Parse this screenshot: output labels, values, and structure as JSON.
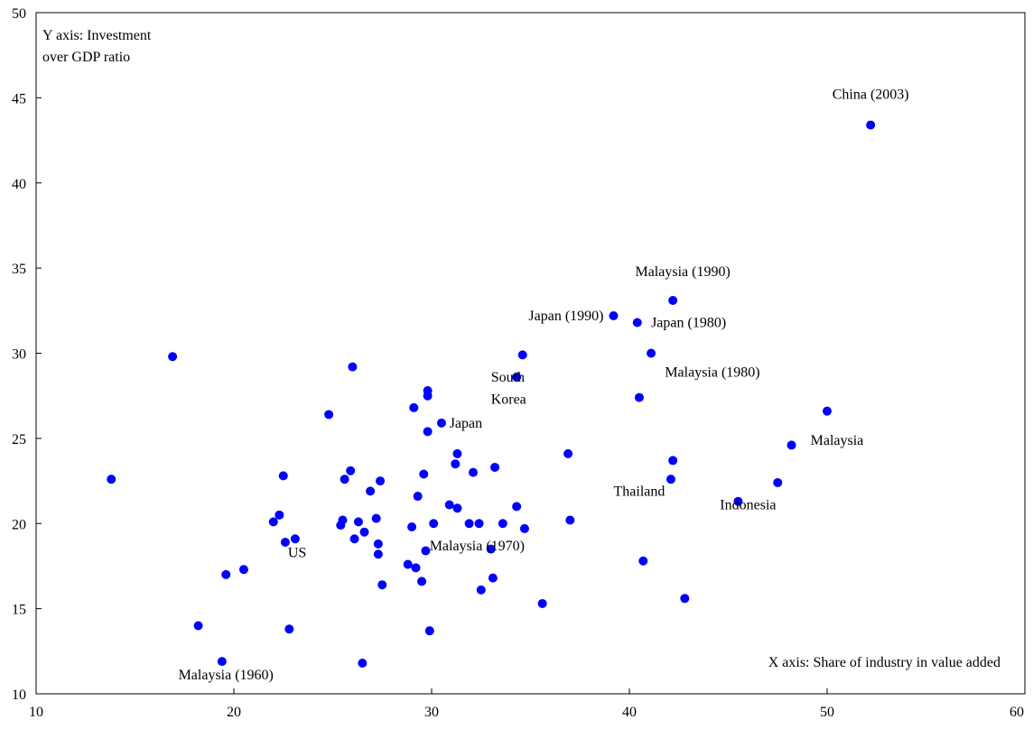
{
  "chart_data": {
    "type": "scatter",
    "title": "",
    "xlabel": "X axis: Share of industry in value added",
    "ylabel_lines": [
      "Y axis: Investment",
      "over GDP ratio"
    ],
    "xlim": [
      10,
      60
    ],
    "ylim": [
      10,
      50
    ],
    "xticks": [
      10,
      20,
      30,
      40,
      50,
      60
    ],
    "yticks": [
      10,
      15,
      20,
      25,
      30,
      35,
      40,
      45,
      50
    ],
    "grid": false,
    "marker_color": "#0000ff",
    "points": [
      [
        13.8,
        22.6
      ],
      [
        16.9,
        29.8
      ],
      [
        18.2,
        14.0
      ],
      [
        19.4,
        11.9
      ],
      [
        19.6,
        17.0
      ],
      [
        20.5,
        17.3
      ],
      [
        22.0,
        20.1
      ],
      [
        22.3,
        20.5
      ],
      [
        22.5,
        22.8
      ],
      [
        22.6,
        18.9
      ],
      [
        22.8,
        13.8
      ],
      [
        23.1,
        19.1
      ],
      [
        24.8,
        26.4
      ],
      [
        25.4,
        19.9
      ],
      [
        25.5,
        20.2
      ],
      [
        25.6,
        22.6
      ],
      [
        25.9,
        23.1
      ],
      [
        26.0,
        29.2
      ],
      [
        26.1,
        19.1
      ],
      [
        26.3,
        20.1
      ],
      [
        26.5,
        11.8
      ],
      [
        26.6,
        19.5
      ],
      [
        26.9,
        21.9
      ],
      [
        27.2,
        20.3
      ],
      [
        27.3,
        18.8
      ],
      [
        27.4,
        22.5
      ],
      [
        27.3,
        18.2
      ],
      [
        27.5,
        16.4
      ],
      [
        28.8,
        17.6
      ],
      [
        29.0,
        19.8
      ],
      [
        29.1,
        26.8
      ],
      [
        29.2,
        17.4
      ],
      [
        29.3,
        21.6
      ],
      [
        29.5,
        16.6
      ],
      [
        29.6,
        22.9
      ],
      [
        29.7,
        18.4
      ],
      [
        29.8,
        25.4
      ],
      [
        29.8,
        27.8
      ],
      [
        29.8,
        27.5
      ],
      [
        29.9,
        13.7
      ],
      [
        30.1,
        20.0
      ],
      [
        30.5,
        25.9
      ],
      [
        30.9,
        21.1
      ],
      [
        31.2,
        23.5
      ],
      [
        31.3,
        24.1
      ],
      [
        31.3,
        20.9
      ],
      [
        31.9,
        20.0
      ],
      [
        32.1,
        23.0
      ],
      [
        32.4,
        20.0
      ],
      [
        32.5,
        16.1
      ],
      [
        33.0,
        18.5
      ],
      [
        33.1,
        16.8
      ],
      [
        33.2,
        23.3
      ],
      [
        33.6,
        20.0
      ],
      [
        34.3,
        28.6
      ],
      [
        34.3,
        21.0
      ],
      [
        34.6,
        29.9
      ],
      [
        34.7,
        19.7
      ],
      [
        35.6,
        15.3
      ],
      [
        36.9,
        24.1
      ],
      [
        37.0,
        20.2
      ],
      [
        39.2,
        32.2
      ],
      [
        40.4,
        31.8
      ],
      [
        40.5,
        27.4
      ],
      [
        40.7,
        17.8
      ],
      [
        41.1,
        30.0
      ],
      [
        42.1,
        22.6
      ],
      [
        42.2,
        23.7
      ],
      [
        42.2,
        33.1
      ],
      [
        42.8,
        15.6
      ],
      [
        45.5,
        21.3
      ],
      [
        47.5,
        22.4
      ],
      [
        48.2,
        24.6
      ],
      [
        50.0,
        26.6
      ],
      [
        52.2,
        43.4
      ]
    ],
    "annotations": [
      {
        "text": "China (2003)",
        "x": 52.2,
        "y": 45.2,
        "anchor": "middle"
      },
      {
        "text": "Malaysia (1990)",
        "x": 42.7,
        "y": 34.8,
        "anchor": "middle"
      },
      {
        "text": "Japan (1990)",
        "x": 38.7,
        "y": 32.2,
        "anchor": "end"
      },
      {
        "text": "Japan (1980)",
        "x": 41.1,
        "y": 31.8,
        "anchor": "start"
      },
      {
        "text": "Malaysia (1980)",
        "x": 44.2,
        "y": 28.9,
        "anchor": "middle"
      },
      {
        "text": "South",
        "x": 33.0,
        "y": 28.6,
        "anchor": "start"
      },
      {
        "text": "Korea",
        "x": 33.0,
        "y": 27.3,
        "anchor": "start"
      },
      {
        "text": "Japan",
        "x": 30.9,
        "y": 25.9,
        "anchor": "start"
      },
      {
        "text": "Malaysia",
        "x": 50.5,
        "y": 24.9,
        "anchor": "middle"
      },
      {
        "text": "Thailand",
        "x": 40.5,
        "y": 21.9,
        "anchor": "middle"
      },
      {
        "text": "Indonesia",
        "x": 46.0,
        "y": 21.1,
        "anchor": "middle"
      },
      {
        "text": "US",
        "x": 23.2,
        "y": 18.3,
        "anchor": "middle"
      },
      {
        "text": "Malaysia (1970)",
        "x": 32.3,
        "y": 18.7,
        "anchor": "middle"
      },
      {
        "text": "Malaysia (1960)",
        "x": 19.6,
        "y": 11.1,
        "anchor": "middle"
      }
    ]
  }
}
